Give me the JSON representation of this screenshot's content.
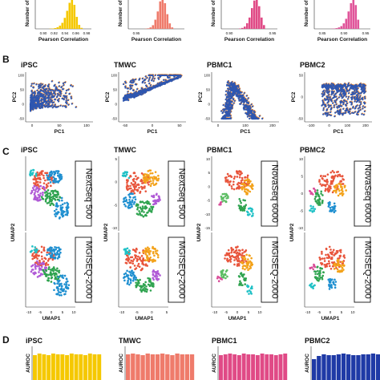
{
  "panel_letters": {
    "B": "B",
    "C": "C",
    "D": "D"
  },
  "colors": {
    "iPSC": "#f5c800",
    "TMWC": "#ef7b6b",
    "PBMC1": "#e04a86",
    "PBMC2": "#e0559a",
    "scatter_main": "#2f57b0",
    "scatter_edge": "#f08a30",
    "cluster_palette": [
      "#2fa34f",
      "#1e8fd0",
      "#e8553c",
      "#b05ad6",
      "#f3a21a",
      "#5bbd62",
      "#20c1c6",
      "#d94f9a",
      "#9a7b3a"
    ],
    "bar_d": [
      "#f5c800",
      "#ef7b6b",
      "#e04a86",
      "#1f3aa6"
    ]
  },
  "panel_a": {
    "ylabel": "Number of c",
    "xlabel": "Pearson Correlation",
    "chart_data": [
      {
        "type": "bar",
        "title": "",
        "ticks": [
          "0.90",
          "0.92",
          "0.94",
          "0.96",
          "0.98"
        ],
        "values": [
          1,
          2,
          4,
          8,
          16,
          30,
          55,
          90,
          130,
          160,
          120,
          60,
          20,
          5
        ]
      },
      {
        "type": "bar",
        "title": "",
        "ticks": [
          "0.95"
        ],
        "values": [
          1,
          3,
          8,
          20,
          50,
          95,
          150,
          175,
          140,
          80,
          30,
          8
        ]
      },
      {
        "type": "bar",
        "title": "",
        "ticks": [
          "0.90",
          "0.95"
        ],
        "values": [
          2,
          5,
          12,
          30,
          60,
          110,
          150,
          170,
          120,
          60,
          20
        ]
      },
      {
        "type": "bar",
        "title": "",
        "ticks": [
          "0.85",
          "0.90",
          "0.95"
        ],
        "values": [
          1,
          2,
          4,
          8,
          15,
          30,
          55,
          95,
          140,
          175,
          130,
          50
        ]
      }
    ]
  },
  "panel_b": {
    "ylabel": "PC2",
    "xlabel": "PC1",
    "charts": [
      {
        "title": "iPSC",
        "xticks": [
          "0",
          "50",
          "100"
        ],
        "yticks": [
          "-50",
          "0",
          "50",
          "100"
        ]
      },
      {
        "title": "TMWC",
        "xticks": [
          "-50",
          "0",
          "50"
        ],
        "yticks": [
          "-50",
          "0",
          "50",
          "100"
        ]
      },
      {
        "title": "PBMC1",
        "xticks": [
          "0",
          "100",
          "200"
        ],
        "yticks": [
          "-50",
          "0",
          "50",
          "100"
        ]
      },
      {
        "title": "PBMC2",
        "xticks": [
          "-100",
          "0",
          "100",
          "200"
        ],
        "yticks": [
          "-50",
          "0",
          "50"
        ]
      }
    ]
  },
  "panel_c": {
    "ylabel": "UMAP2",
    "xlabel": "UMAP1",
    "charts": [
      {
        "title": "iPSC",
        "platform_top": "NextSeq 500",
        "platform_bottom": "MGISEQ-2000",
        "xticks": [
          "-10",
          "-5",
          "0",
          "5",
          "10"
        ]
      },
      {
        "title": "TMWC",
        "platform_top": "NextSeq 500",
        "platform_bottom": "MGISEQ-2000",
        "xticks": [
          "-10",
          "-5",
          "0",
          "5"
        ],
        "yticks": [
          "5",
          "0",
          "-5",
          "-10"
        ]
      },
      {
        "title": "PBMC1",
        "platform_top": "NovaSeq 6000",
        "platform_bottom": "MGISEQ-2000",
        "xticks": [
          "-10",
          "-5",
          "0",
          "5",
          "10"
        ],
        "yticks": [
          "10",
          "5",
          "0",
          "-5",
          "-10",
          "-15"
        ]
      },
      {
        "title": "PBMC2",
        "platform_top": "NovaSeq 6000",
        "platform_bottom": "MGISEQ-2000",
        "xticks": [
          "-10",
          "-5",
          "0",
          "5",
          "10"
        ],
        "yticks": [
          "10",
          "5",
          "0",
          "-5",
          "-10"
        ]
      }
    ]
  },
  "panel_d": {
    "ylabel": "AUROC",
    "chart_data": [
      {
        "type": "bar",
        "title": "iPSC",
        "values": [
          0.95,
          0.97,
          0.96,
          0.95,
          0.97,
          0.96,
          0.96,
          0.95,
          0.97,
          0.96,
          0.96,
          0.95,
          0.97,
          0.96,
          0.96
        ]
      },
      {
        "type": "bar",
        "title": "TMWC",
        "values": [
          0.96,
          0.97,
          0.96,
          0.95,
          0.97,
          0.96,
          0.96,
          0.97,
          0.96,
          0.95,
          0.97,
          0.96,
          0.96,
          0.96
        ]
      },
      {
        "type": "bar",
        "title": "PBMC1",
        "values": [
          0.95,
          0.96,
          0.97,
          0.96,
          0.95,
          0.97,
          0.96,
          0.96,
          0.95,
          0.97,
          0.96,
          0.96,
          0.95,
          0.96,
          0.97
        ]
      },
      {
        "type": "bar",
        "title": "PBMC2",
        "values": [
          0.9,
          0.94,
          0.96,
          0.95,
          0.95,
          0.96,
          0.97,
          0.96,
          0.95,
          0.95,
          0.96,
          0.96,
          0.97,
          0.96
        ]
      }
    ]
  }
}
